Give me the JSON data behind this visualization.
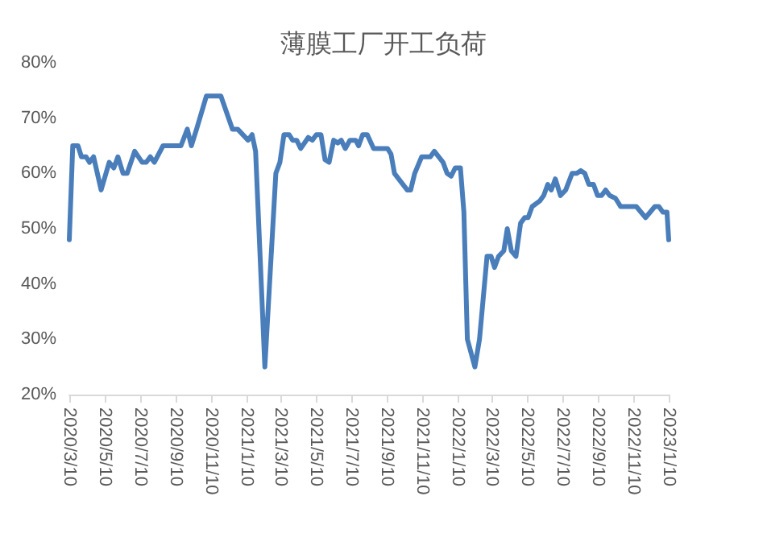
{
  "chart_data": {
    "type": "line",
    "title": "薄膜工厂开工负荷",
    "x": [
      "2020-03-10",
      "2020-03-16",
      "2020-03-25",
      "2020-03-31",
      "2020-04-08",
      "2020-04-14",
      "2020-04-21",
      "2020-05-04",
      "2020-05-18",
      "2020-05-26",
      "2020-06-02",
      "2020-06-11",
      "2020-06-18",
      "2020-07-01",
      "2020-07-14",
      "2020-07-21",
      "2020-07-28",
      "2020-08-04",
      "2020-08-19",
      "2020-09-19",
      "2020-09-30",
      "2020-10-07",
      "2020-10-16",
      "2020-11-02",
      "2020-11-27",
      "2020-12-17",
      "2020-12-26",
      "2021-01-13",
      "2021-01-20",
      "2021-01-26",
      "2021-02-11",
      "2021-03-02",
      "2021-03-09",
      "2021-03-16",
      "2021-03-25",
      "2021-03-31",
      "2021-04-07",
      "2021-04-14",
      "2021-04-27",
      "2021-05-04",
      "2021-05-11",
      "2021-05-19",
      "2021-05-26",
      "2021-06-02",
      "2021-06-10",
      "2021-06-17",
      "2021-06-23",
      "2021-06-30",
      "2021-07-08",
      "2021-07-18",
      "2021-07-23",
      "2021-07-30",
      "2021-08-07",
      "2021-08-18",
      "2021-09-11",
      "2021-09-17",
      "2021-09-23",
      "2021-10-15",
      "2021-10-21",
      "2021-10-28",
      "2021-11-09",
      "2021-11-24",
      "2021-12-01",
      "2021-12-16",
      "2021-12-23",
      "2021-12-30",
      "2022-01-06",
      "2022-01-15",
      "2022-01-21",
      "2022-01-27",
      "2022-02-09",
      "2022-02-17",
      "2022-03-02",
      "2022-03-09",
      "2022-03-15",
      "2022-03-22",
      "2022-03-31",
      "2022-04-06",
      "2022-04-13",
      "2022-04-21",
      "2022-04-29",
      "2022-05-06",
      "2022-05-12",
      "2022-05-19",
      "2022-06-01",
      "2022-06-08",
      "2022-06-15",
      "2022-06-21",
      "2022-06-28",
      "2022-07-07",
      "2022-07-16",
      "2022-07-27",
      "2022-08-04",
      "2022-08-11",
      "2022-08-18",
      "2022-08-25",
      "2022-09-02",
      "2022-09-09",
      "2022-09-16",
      "2022-09-23",
      "2022-09-30",
      "2022-10-10",
      "2022-10-19",
      "2022-11-15",
      "2022-12-01",
      "2022-12-17",
      "2022-12-24",
      "2022-12-31",
      "2023-01-07",
      "2023-01-10"
    ],
    "series": [
      {
        "color": "#4a7ebb",
        "values": [
          48,
          65,
          65,
          63,
          63,
          62,
          63,
          57,
          62,
          61,
          63,
          60,
          60,
          64,
          62,
          62,
          63,
          62,
          65,
          65,
          68,
          65,
          68,
          74,
          74,
          68,
          68,
          66,
          67,
          64,
          25,
          60,
          62,
          67,
          67,
          66,
          66,
          64.5,
          66.5,
          66,
          67,
          67,
          62.5,
          62,
          66,
          65.5,
          66,
          64.5,
          66,
          66,
          65,
          67,
          67,
          64.5,
          64.5,
          63.5,
          60,
          57,
          57,
          60,
          63,
          63,
          64,
          62,
          60,
          59.5,
          61,
          61,
          53,
          30,
          25,
          30,
          45,
          45,
          43,
          45,
          46,
          50,
          46,
          45,
          51,
          52,
          52,
          54,
          55,
          56,
          58,
          57,
          59,
          56,
          57,
          60,
          60,
          60.5,
          60,
          58,
          58,
          56,
          56,
          57,
          56,
          55.5,
          54,
          54,
          52,
          54,
          54,
          53,
          53,
          48
        ]
      }
    ],
    "xlim": [
      "2020-03-10",
      "2023-01-10"
    ],
    "xticks": [
      {
        "value": "2020-03-10",
        "label": "2020/3/10"
      },
      {
        "value": "2020-05-10",
        "label": "2020/5/10"
      },
      {
        "value": "2020-07-10",
        "label": "2020/7/10"
      },
      {
        "value": "2020-09-10",
        "label": "2020/9/10"
      },
      {
        "value": "2020-11-10",
        "label": "2020/11/10"
      },
      {
        "value": "2021-01-10",
        "label": "2021/1/10"
      },
      {
        "value": "2021-03-10",
        "label": "2021/3/10"
      },
      {
        "value": "2021-05-10",
        "label": "2021/5/10"
      },
      {
        "value": "2021-07-10",
        "label": "2021/7/10"
      },
      {
        "value": "2021-09-10",
        "label": "2021/9/10"
      },
      {
        "value": "2021-11-10",
        "label": "2021/11/10"
      },
      {
        "value": "2022-01-10",
        "label": "2022/1/10"
      },
      {
        "value": "2022-03-10",
        "label": "2022/3/10"
      },
      {
        "value": "2022-05-10",
        "label": "2022/5/10"
      },
      {
        "value": "2022-07-10",
        "label": "2022/7/10"
      },
      {
        "value": "2022-09-10",
        "label": "2022/9/10"
      },
      {
        "value": "2022-11-10",
        "label": "2022/11/10"
      },
      {
        "value": "2023-01-10",
        "label": "2023/1/10"
      }
    ],
    "ylim": [
      20,
      80
    ],
    "yticks": [
      {
        "value": 20,
        "label": "20%"
      },
      {
        "value": 30,
        "label": "30%"
      },
      {
        "value": 40,
        "label": "40%"
      },
      {
        "value": 50,
        "label": "50%"
      },
      {
        "value": 60,
        "label": "60%"
      },
      {
        "value": 70,
        "label": "70%"
      },
      {
        "value": 80,
        "label": "80%"
      }
    ],
    "grid": false,
    "marker": "none",
    "line_style": "solid"
  }
}
